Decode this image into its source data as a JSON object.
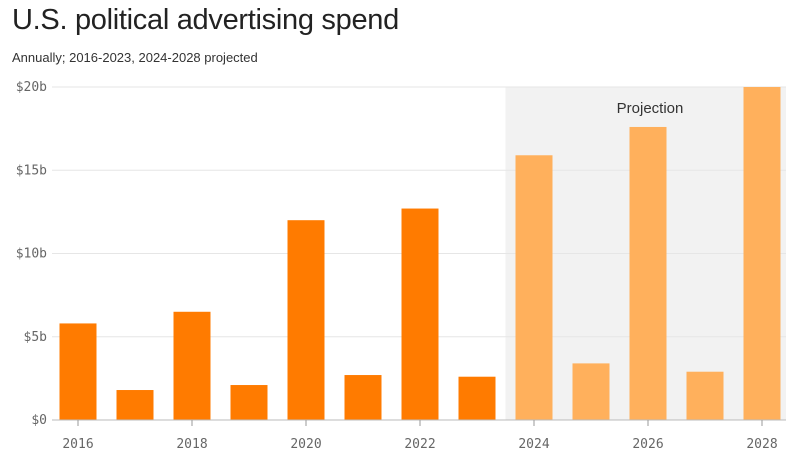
{
  "title": "U.S. political advertising spend",
  "subtitle": "Annually; 2016-2023, 2024-2028 projected",
  "colors": {
    "actual": "#ff7b00",
    "projected": "#ffb05c",
    "projection_band": "#f2f2f2",
    "grid": "#e6e6e6"
  },
  "chart_data": {
    "type": "bar",
    "title": "U.S. political advertising spend",
    "subtitle": "Annually; 2016-2023, 2024-2028 projected",
    "x": [
      2016,
      2017,
      2018,
      2019,
      2020,
      2021,
      2022,
      2023,
      2024,
      2025,
      2026,
      2027,
      2028
    ],
    "x_tick_labels": [
      "2016",
      "2018",
      "2020",
      "2022",
      "2024",
      "2026",
      "2028"
    ],
    "values": [
      5.8,
      1.8,
      6.5,
      2.1,
      12.0,
      2.7,
      12.7,
      2.6,
      15.9,
      3.4,
      17.6,
      2.9,
      20.0
    ],
    "projected_from": 2024,
    "units": "billion USD",
    "ylim": [
      0,
      20
    ],
    "y_tick_values": [
      0,
      5,
      10,
      15,
      20
    ],
    "y_tick_labels": [
      "$0",
      "$5b",
      "$10b",
      "$15b",
      "$20b"
    ],
    "annotation": "Projection",
    "grid": true,
    "legend": "none"
  }
}
